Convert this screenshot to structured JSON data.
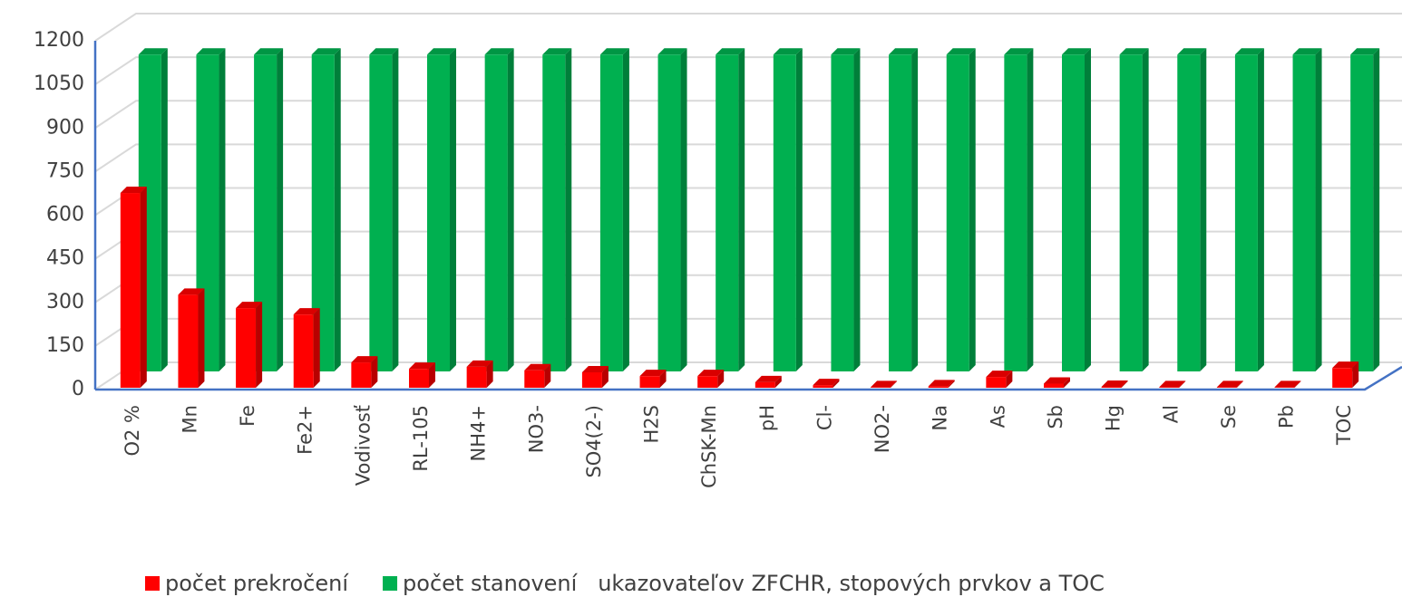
{
  "chart_data": {
    "type": "bar3d",
    "categories": [
      "O2 %",
      "Mn",
      "Fe",
      "Fe2+",
      "Vodivosť",
      "RL-105",
      "NH4+",
      "NO3-",
      "SO4(2-)",
      "H2S",
      "ChSK-Mn",
      "pH",
      "Cl-",
      "NO2-",
      "Na",
      "As",
      "Sb",
      "Hg",
      "Al",
      "Se",
      "Pb",
      "TOC"
    ],
    "series": [
      {
        "name": "počet prekročení",
        "color": "#ff0000",
        "values": [
          670,
          320,
          274,
          252,
          87,
          65,
          72,
          60,
          53,
          40,
          40,
          19,
          9,
          2,
          5,
          37,
          14,
          3,
          2,
          2,
          2,
          68
        ]
      },
      {
        "name": "počet stanovení   ukazovateľov ZFCHR, stopových prvkov a TOC",
        "color": "#00b050",
        "values": [
          1090,
          1090,
          1090,
          1090,
          1090,
          1090,
          1090,
          1090,
          1090,
          1090,
          1090,
          1090,
          1090,
          1090,
          1090,
          1090,
          1090,
          1090,
          1090,
          1090,
          1090,
          1090
        ]
      }
    ],
    "ylim": [
      0,
      1200
    ],
    "yticks": [
      0,
      150,
      300,
      450,
      600,
      750,
      900,
      1050,
      1200
    ],
    "grid": true,
    "legend": "bottom"
  }
}
